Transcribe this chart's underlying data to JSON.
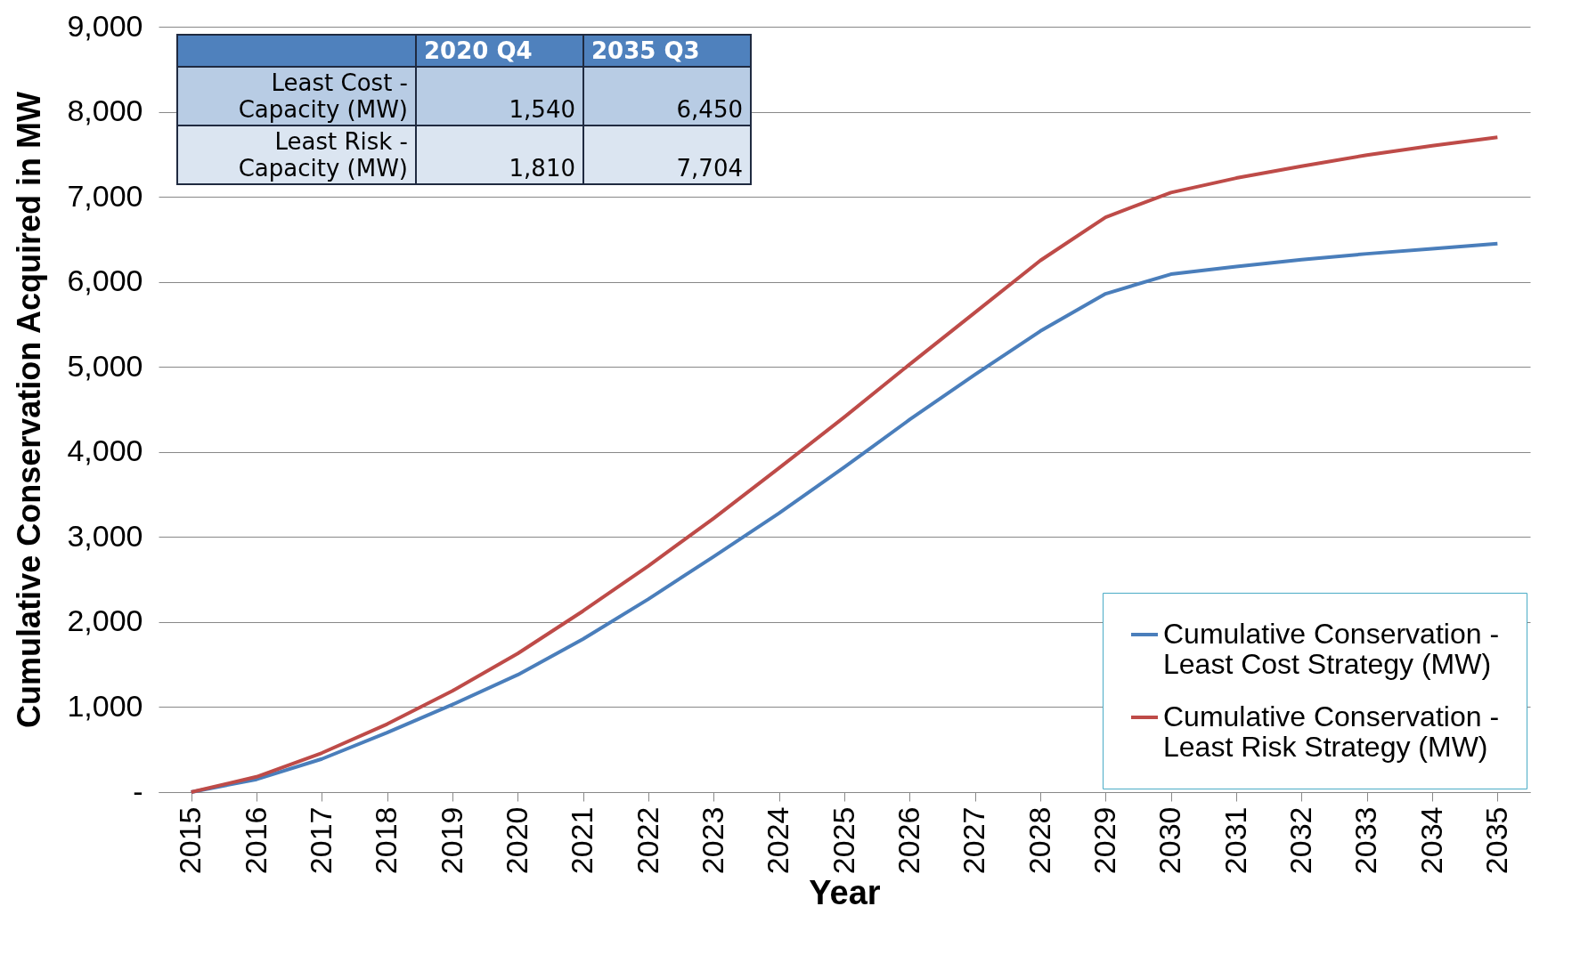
{
  "chart_data": {
    "type": "line",
    "xlabel": "Year",
    "ylabel": "Cumulative Conservation Acquired in MW",
    "categories": [
      "2015",
      "2016",
      "2017",
      "2018",
      "2019",
      "2020",
      "2021",
      "2022",
      "2023",
      "2024",
      "2025",
      "2026",
      "2027",
      "2028",
      "2029",
      "2030",
      "2031",
      "2032",
      "2033",
      "2034",
      "2035"
    ],
    "series": [
      {
        "name": "Cumulative Conservation - Least Cost Strategy (MW)",
        "color": "#4a7ebb",
        "values": [
          0,
          150,
          390,
          700,
          1030,
          1380,
          1800,
          2270,
          2770,
          3280,
          3820,
          4380,
          4910,
          5420,
          5860,
          6090,
          6180,
          6260,
          6330,
          6390,
          6450
        ]
      },
      {
        "name": "Cumulative Conservation - Least Risk Strategy (MW)",
        "color": "#be4b48",
        "values": [
          0,
          180,
          460,
          800,
          1190,
          1630,
          2130,
          2660,
          3220,
          3810,
          4410,
          5030,
          5640,
          6250,
          6760,
          7050,
          7220,
          7360,
          7490,
          7600,
          7700
        ]
      }
    ],
    "ylim": [
      0,
      9000
    ],
    "yticks": [
      {
        "value": 0,
        "label": "-"
      },
      {
        "value": 1000,
        "label": "1,000"
      },
      {
        "value": 2000,
        "label": "2,000"
      },
      {
        "value": 3000,
        "label": "3,000"
      },
      {
        "value": 4000,
        "label": "4,000"
      },
      {
        "value": 5000,
        "label": "5,000"
      },
      {
        "value": 6000,
        "label": "6,000"
      },
      {
        "value": 7000,
        "label": "7,000"
      },
      {
        "value": 8000,
        "label": "8,000"
      },
      {
        "value": 9000,
        "label": "9,000"
      }
    ],
    "grid": "y",
    "legend": "bottom right",
    "marker": "none",
    "line_style": "solid",
    "annotations": [
      "2020 Q4",
      "2035 Q3",
      "Least Cost - Capacity (MW)",
      "1,540",
      "6,450",
      "Least Risk - Capacity (MW)",
      "1,810",
      "7,704"
    ]
  }
}
